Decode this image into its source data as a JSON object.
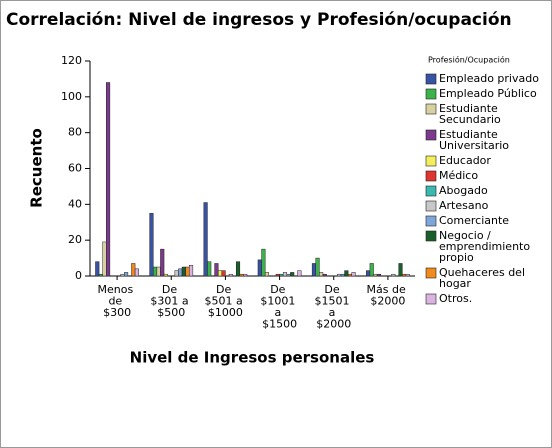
{
  "chart_data": {
    "type": "bar",
    "title": "Correlación: Nivel de ingresos y Profesión/ocupación",
    "x_label": "Nivel de Ingresos personales",
    "y_label": "Recuento",
    "legend_title": "Profesión/Ocupación",
    "categories": [
      "Menos de $300",
      "De $301 a $500",
      "De $501 a $1000",
      "De $1001 a $1500",
      "De $1501 a $2000",
      "Más de $2000"
    ],
    "series": [
      {
        "name": "Empleado privado",
        "color": "#3953a4",
        "values": [
          8,
          35,
          41,
          9,
          7,
          3
        ]
      },
      {
        "name": "Empleado Público",
        "color": "#3cb34a",
        "values": [
          1,
          5,
          8,
          15,
          10,
          7
        ]
      },
      {
        "name": "Estudiante Secundario",
        "color": "#d8d0a0",
        "values": [
          19,
          5,
          0,
          2,
          2,
          1
        ]
      },
      {
        "name": "Estudiante Universitario",
        "color": "#7b3a8c",
        "values": [
          108,
          15,
          7,
          0,
          1,
          1
        ]
      },
      {
        "name": "Educador",
        "color": "#f3ee5c",
        "values": [
          0,
          1,
          3,
          0,
          0,
          0
        ]
      },
      {
        "name": "Médico",
        "color": "#e0342f",
        "values": [
          0,
          0,
          3,
          1,
          0,
          0
        ]
      },
      {
        "name": "Abogado",
        "color": "#3bb8b0",
        "values": [
          0,
          0,
          0,
          1,
          0,
          0
        ]
      },
      {
        "name": "Artesano",
        "color": "#c8c8c8",
        "values": [
          1,
          3,
          1,
          2,
          1,
          1
        ]
      },
      {
        "name": "Comerciante",
        "color": "#7fa6d8",
        "values": [
          2,
          4,
          0,
          1,
          1,
          0
        ]
      },
      {
        "name": "Negocio / emprendimiento propio",
        "color": "#1a5f2b",
        "values": [
          0,
          5,
          8,
          2,
          3,
          7
        ]
      },
      {
        "name": "Quehaceres del hogar",
        "color": "#f08a1c",
        "values": [
          7,
          5,
          1,
          0,
          1,
          1
        ]
      },
      {
        "name": "Otros.",
        "color": "#d9b4e0",
        "values": [
          4,
          6,
          1,
          3,
          2,
          1
        ]
      }
    ],
    "ylim": [
      0,
      120
    ],
    "yticks": [
      0,
      20,
      40,
      60,
      80,
      100,
      120
    ],
    "grid": false
  }
}
